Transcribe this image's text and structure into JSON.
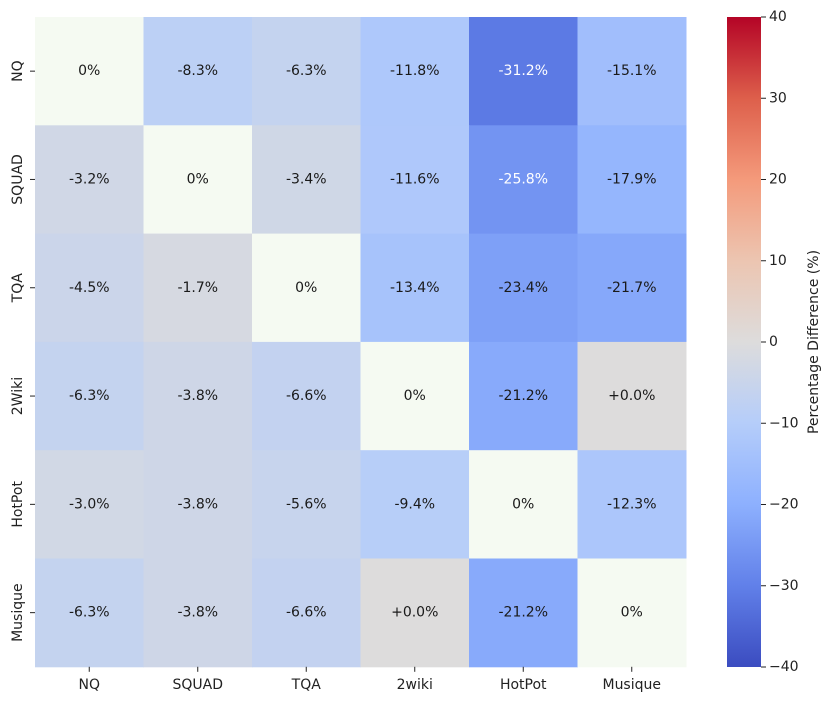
{
  "chart_data": {
    "type": "heatmap",
    "title": "",
    "xlabel": "",
    "ylabel": "",
    "x_categories": [
      "NQ",
      "SQUAD",
      "TQA",
      "2wiki",
      "HotPot",
      "Musique"
    ],
    "y_categories": [
      "NQ",
      "SQUAD",
      "TQA",
      "2Wiki",
      "HotPot",
      "Musique"
    ],
    "values": [
      [
        0,
        -8.3,
        -6.3,
        -11.8,
        -31.2,
        -15.1
      ],
      [
        -3.2,
        0,
        -3.4,
        -11.6,
        -25.8,
        -17.9
      ],
      [
        -4.5,
        -1.7,
        0,
        -13.4,
        -23.4,
        -21.7
      ],
      [
        -6.3,
        -3.8,
        -6.6,
        0,
        -21.2,
        0.0
      ],
      [
        -3.0,
        -3.8,
        -5.6,
        -9.4,
        0,
        -12.3
      ],
      [
        -6.3,
        -3.8,
        -6.6,
        0.0,
        -21.2,
        0
      ]
    ],
    "cell_labels": [
      [
        "0%",
        "-8.3%",
        "-6.3%",
        "-11.8%",
        "-31.2%",
        "-15.1%"
      ],
      [
        "-3.2%",
        "0%",
        "-3.4%",
        "-11.6%",
        "-25.8%",
        "-17.9%"
      ],
      [
        "-4.5%",
        "-1.7%",
        "0%",
        "-13.4%",
        "-23.4%",
        "-21.7%"
      ],
      [
        "-6.3%",
        "-3.8%",
        "-6.6%",
        "0%",
        "-21.2%",
        "+0.0%"
      ],
      [
        "-3.0%",
        "-3.8%",
        "-5.6%",
        "-9.4%",
        "0%",
        "-12.3%"
      ],
      [
        "-6.3%",
        "-3.8%",
        "-6.6%",
        "+0.0%",
        "-21.2%",
        "0%"
      ]
    ],
    "diagonal_color": "#f5faf2",
    "colormap": "coolwarm",
    "colorbar": {
      "label": "Percentage Difference (%)",
      "range": [
        -40,
        40
      ],
      "ticks": [
        40,
        30,
        20,
        10,
        0,
        -10,
        -20,
        -30,
        -40
      ],
      "tick_labels": [
        "40",
        "30",
        "20",
        "10",
        "0",
        "−10",
        "−20",
        "−30",
        "−40"
      ]
    }
  }
}
